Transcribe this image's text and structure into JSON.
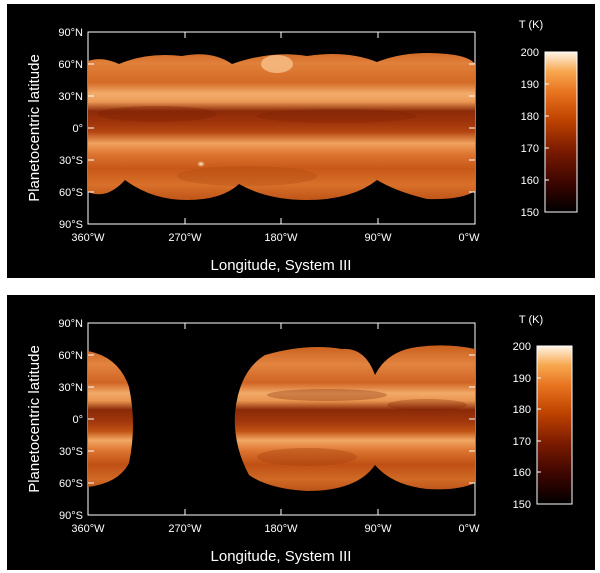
{
  "panels": [
    {
      "id": "top",
      "y_axis_title": "Planetocentric latitude",
      "x_axis_title": "Longitude, System III",
      "y_ticks": [
        "90°N",
        "60°N",
        "30°N",
        "0°",
        "30°S",
        "60°S",
        "90°S"
      ],
      "x_ticks": [
        "360°W",
        "270°W",
        "180°W",
        "90°W",
        "0°W"
      ],
      "colorbar": {
        "title": "T (K)",
        "ticks": [
          "200",
          "190",
          "180",
          "170",
          "160",
          "150"
        ]
      },
      "coverage": "full"
    },
    {
      "id": "bottom",
      "y_axis_title": "Planetocentric latitude",
      "x_axis_title": "Longitude, System III",
      "y_ticks": [
        "90°N",
        "60°N",
        "30°N",
        "0°",
        "30°S",
        "60°S",
        "90°S"
      ],
      "x_ticks": [
        "360°W",
        "270°W",
        "180°W",
        "90°W",
        "0°W"
      ],
      "colorbar": {
        "title": "T (K)",
        "ticks": [
          "200",
          "190",
          "180",
          "170",
          "160",
          "150"
        ]
      },
      "coverage": "partial"
    }
  ],
  "colors": {
    "background": "#000000",
    "colormap": [
      "#000000",
      "#3a0500",
      "#7a1a00",
      "#c04400",
      "#e87420",
      "#f7a850",
      "#fde4c4",
      "#ffffff"
    ]
  }
}
